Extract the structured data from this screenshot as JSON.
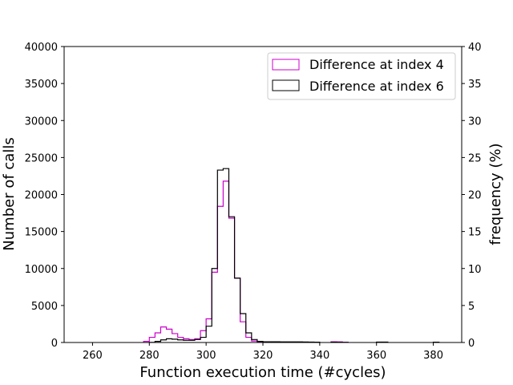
{
  "chart_data": {
    "type": "histogram",
    "title": "",
    "xlabel": "Function execution time (#cycles)",
    "ylabel": "Number of calls",
    "ylabel_right": "frequency (%)",
    "xlim": [
      250,
      390
    ],
    "ylim": [
      0,
      40000
    ],
    "ylim_right": [
      0,
      40
    ],
    "xticks": [
      260,
      280,
      300,
      320,
      340,
      360,
      380
    ],
    "yticks": [
      0,
      5000,
      10000,
      15000,
      20000,
      25000,
      30000,
      35000,
      40000
    ],
    "yticks_right": [
      0,
      5,
      10,
      15,
      20,
      25,
      30,
      35,
      40
    ],
    "grid": false,
    "legend_position": "top-right",
    "bin_width": 2,
    "series": [
      {
        "name": "Difference at index 4",
        "color": "#cc00cc",
        "bins": [
          {
            "start": 278,
            "count": 150
          },
          {
            "start": 280,
            "count": 700
          },
          {
            "start": 282,
            "count": 1300
          },
          {
            "start": 284,
            "count": 2100
          },
          {
            "start": 286,
            "count": 1800
          },
          {
            "start": 288,
            "count": 1200
          },
          {
            "start": 290,
            "count": 700
          },
          {
            "start": 292,
            "count": 500
          },
          {
            "start": 294,
            "count": 400
          },
          {
            "start": 296,
            "count": 500
          },
          {
            "start": 298,
            "count": 1600
          },
          {
            "start": 300,
            "count": 3200
          },
          {
            "start": 302,
            "count": 9500
          },
          {
            "start": 304,
            "count": 18400
          },
          {
            "start": 306,
            "count": 21800
          },
          {
            "start": 308,
            "count": 16800
          },
          {
            "start": 310,
            "count": 8700
          },
          {
            "start": 312,
            "count": 2800
          },
          {
            "start": 314,
            "count": 700
          },
          {
            "start": 316,
            "count": 200
          },
          {
            "start": 318,
            "count": 100
          },
          {
            "start": 320,
            "count": 80
          },
          {
            "start": 322,
            "count": 60
          },
          {
            "start": 324,
            "count": 50
          },
          {
            "start": 326,
            "count": 40
          },
          {
            "start": 328,
            "count": 40
          },
          {
            "start": 330,
            "count": 30
          },
          {
            "start": 332,
            "count": 30
          },
          {
            "start": 334,
            "count": 20
          },
          {
            "start": 336,
            "count": 20
          },
          {
            "start": 338,
            "count": 15
          },
          {
            "start": 344,
            "count": 100
          },
          {
            "start": 346,
            "count": 80
          },
          {
            "start": 348,
            "count": 30
          },
          {
            "start": 360,
            "count": 30
          },
          {
            "start": 362,
            "count": 20
          },
          {
            "start": 380,
            "count": 20
          }
        ]
      },
      {
        "name": "Difference at index 6",
        "color": "#000000",
        "bins": [
          {
            "start": 280,
            "count": 20
          },
          {
            "start": 282,
            "count": 150
          },
          {
            "start": 284,
            "count": 350
          },
          {
            "start": 286,
            "count": 500
          },
          {
            "start": 288,
            "count": 450
          },
          {
            "start": 290,
            "count": 350
          },
          {
            "start": 292,
            "count": 300
          },
          {
            "start": 294,
            "count": 300
          },
          {
            "start": 296,
            "count": 400
          },
          {
            "start": 298,
            "count": 700
          },
          {
            "start": 300,
            "count": 2200
          },
          {
            "start": 302,
            "count": 10000
          },
          {
            "start": 304,
            "count": 23300
          },
          {
            "start": 306,
            "count": 23500
          },
          {
            "start": 308,
            "count": 17000
          },
          {
            "start": 310,
            "count": 8700
          },
          {
            "start": 312,
            "count": 3900
          },
          {
            "start": 314,
            "count": 1300
          },
          {
            "start": 316,
            "count": 400
          },
          {
            "start": 318,
            "count": 150
          },
          {
            "start": 320,
            "count": 100
          },
          {
            "start": 322,
            "count": 100
          },
          {
            "start": 324,
            "count": 100
          },
          {
            "start": 326,
            "count": 90
          },
          {
            "start": 328,
            "count": 80
          },
          {
            "start": 330,
            "count": 80
          },
          {
            "start": 332,
            "count": 80
          },
          {
            "start": 334,
            "count": 70
          },
          {
            "start": 336,
            "count": 60
          },
          {
            "start": 338,
            "count": 50
          },
          {
            "start": 344,
            "count": 40
          },
          {
            "start": 346,
            "count": 30
          },
          {
            "start": 348,
            "count": 20
          },
          {
            "start": 360,
            "count": 60
          },
          {
            "start": 362,
            "count": 60
          },
          {
            "start": 380,
            "count": 50
          }
        ]
      }
    ]
  }
}
